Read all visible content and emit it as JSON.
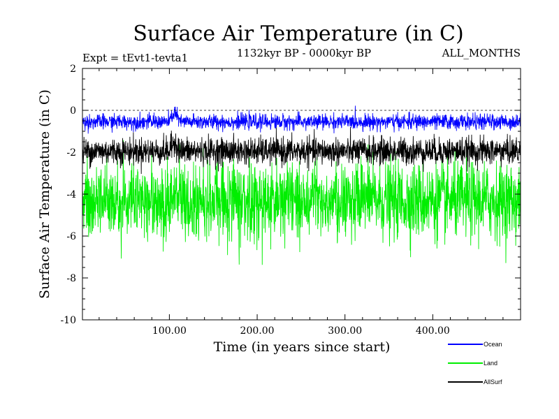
{
  "chart_data": {
    "type": "line",
    "title": "Surface Air Temperature (in C)",
    "experiment_label": "Expt = tEvt1-tevta1",
    "period_label": "1132kyr BP - 0000kyr BP",
    "months_label": "ALL_MONTHS",
    "xlabel": "Time (in years since start)",
    "ylabel": "Surface Air Temperature (in C)",
    "xlim": [
      1,
      500
    ],
    "ylim": [
      -10,
      2
    ],
    "x_ticks": [
      {
        "value": 100,
        "label": "100.00"
      },
      {
        "value": 200,
        "label": "200.00"
      },
      {
        "value": 300,
        "label": "300.00"
      },
      {
        "value": 400,
        "label": "400.00"
      }
    ],
    "y_ticks": [
      {
        "value": 2,
        "label": "2"
      },
      {
        "value": 0,
        "label": "0"
      },
      {
        "value": -2,
        "label": "-2"
      },
      {
        "value": -4,
        "label": "-4"
      },
      {
        "value": -6,
        "label": "-6"
      },
      {
        "value": -8,
        "label": "-8"
      },
      {
        "value": -10,
        "label": "-10"
      }
    ],
    "reference_line": 0,
    "x_step": 0.25,
    "series": [
      {
        "name": "Land",
        "color": "#00ee00",
        "mean": -4.3,
        "sd": 0.9,
        "min": -8.0,
        "max": -1.3,
        "draw_order": 1,
        "legend_order": 2,
        "events": [
          {
            "x_start": 100,
            "x_end": 112,
            "shift": 0.5
          }
        ]
      },
      {
        "name": "AllSurf",
        "color": "#000000",
        "mean": -1.95,
        "sd": 0.32,
        "min": -3.2,
        "max": -0.8,
        "draw_order": 2,
        "legend_order": 3,
        "events": [
          {
            "x_start": 100,
            "x_end": 112,
            "shift": 0.5
          }
        ]
      },
      {
        "name": "Ocean",
        "color": "#0000ff",
        "mean": -0.55,
        "sd": 0.18,
        "min": -1.2,
        "max": 0.55,
        "draw_order": 3,
        "legend_order": 1,
        "events": [
          {
            "x_start": 100,
            "x_end": 112,
            "shift": 0.5
          }
        ]
      }
    ]
  }
}
